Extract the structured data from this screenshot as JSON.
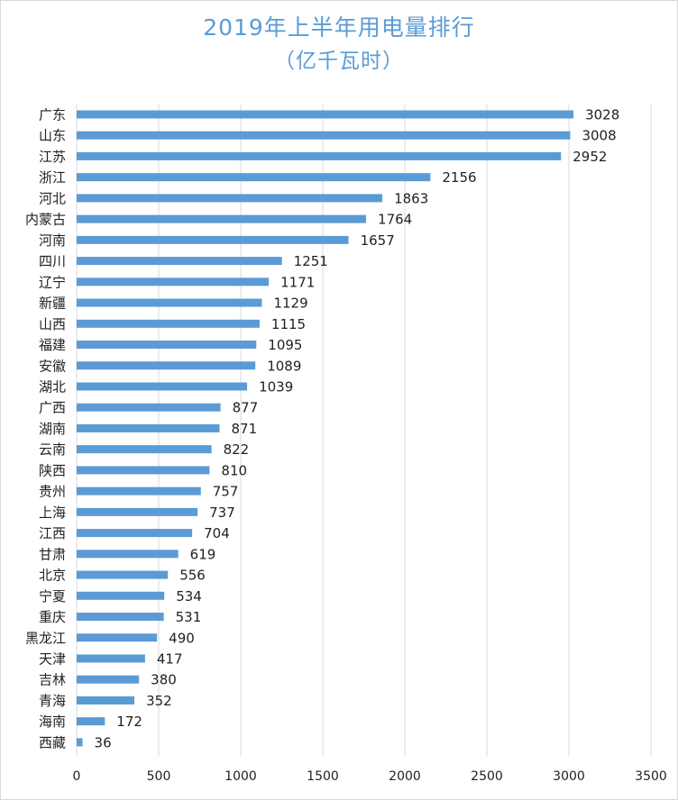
{
  "chart_data": {
    "type": "bar",
    "orientation": "horizontal",
    "title": "2019年上半年用电量排行",
    "subtitle": "（亿千瓦时）",
    "categories": [
      "广东",
      "山东",
      "江苏",
      "浙江",
      "河北",
      "内蒙古",
      "河南",
      "四川",
      "辽宁",
      "新疆",
      "山西",
      "福建",
      "安徽",
      "湖北",
      "广西",
      "湖南",
      "云南",
      "陕西",
      "贵州",
      "上海",
      "江西",
      "甘肃",
      "北京",
      "宁夏",
      "重庆",
      "黑龙江",
      "天津",
      "吉林",
      "青海",
      "海南",
      "西藏"
    ],
    "values": [
      3028,
      3008,
      2952,
      2156,
      1863,
      1764,
      1657,
      1251,
      1171,
      1129,
      1115,
      1095,
      1089,
      1039,
      877,
      871,
      822,
      810,
      757,
      737,
      704,
      619,
      556,
      534,
      531,
      490,
      417,
      380,
      352,
      172,
      36
    ],
    "x_ticks": [
      0,
      500,
      1000,
      1500,
      2000,
      2500,
      3000,
      3500
    ],
    "xlim": [
      0,
      3500
    ],
    "grid": true,
    "bar_color": "#5b9bd5",
    "xlabel": "",
    "ylabel": ""
  }
}
